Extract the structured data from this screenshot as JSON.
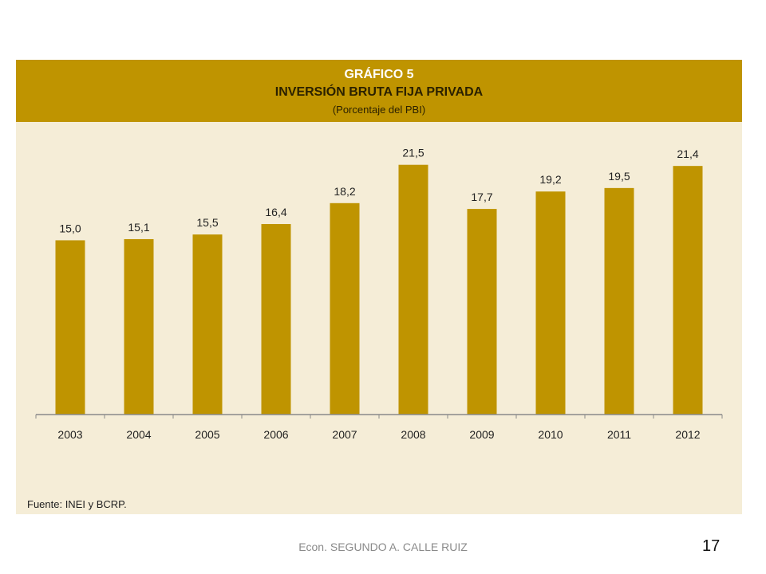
{
  "header": {
    "figure_label": "GRÁFICO 5",
    "title": "INVERSIÓN BRUTA FIJA PRIVADA",
    "subtitle": "(Porcentaje del PBI)"
  },
  "chart_data": {
    "type": "bar",
    "title": "INVERSIÓN BRUTA FIJA PRIVADA",
    "subtitle": "(Porcentaje del PBI)",
    "categories": [
      "2003",
      "2004",
      "2005",
      "2006",
      "2007",
      "2008",
      "2009",
      "2010",
      "2011",
      "2012"
    ],
    "values": [
      15.0,
      15.1,
      15.5,
      16.4,
      18.2,
      21.5,
      17.7,
      19.2,
      19.5,
      21.4
    ],
    "data_labels": [
      "15,0",
      "15,1",
      "15,5",
      "16,4",
      "18,2",
      "21,5",
      "17,7",
      "19,2",
      "19,5",
      "21,4"
    ],
    "ylim": [
      0,
      24.5
    ],
    "grid": false,
    "legend": "none",
    "bar_color": "#bf9400"
  },
  "source": "Fuente: INEI y BCRP.",
  "footer": {
    "author": "Econ. SEGUNDO A. CALLE RUIZ",
    "page_number": "17"
  },
  "colors": {
    "header_bg": "#bf9400",
    "plot_bg": "#f5edd7",
    "bar": "#bf9400",
    "axis": "#8a8a8a"
  }
}
